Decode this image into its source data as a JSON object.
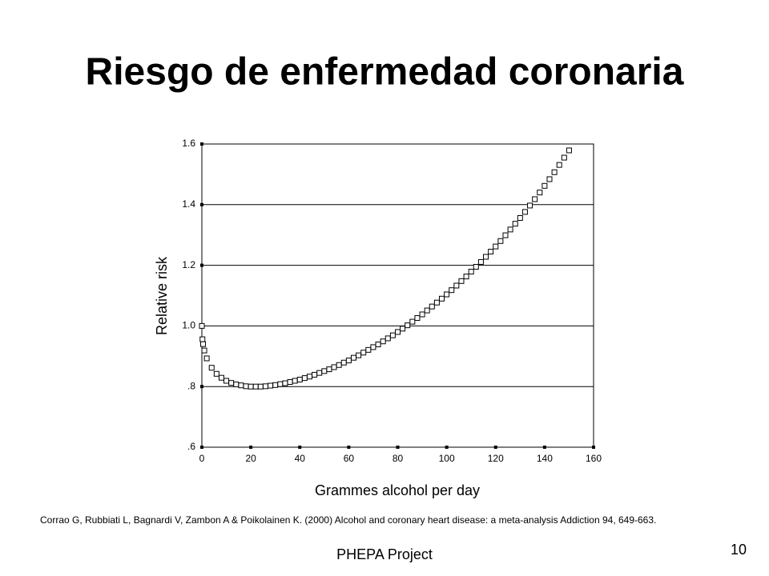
{
  "title": "Riesgo de enfermedad coronaria",
  "chart_data": {
    "type": "scatter",
    "x_label": "Grammes alcohol per day",
    "y_label": "Relative risk",
    "color": "#000000",
    "grid": true,
    "xlim": [
      0,
      160
    ],
    "ylim": [
      0.6,
      1.6
    ],
    "xticks": [
      0,
      20,
      40,
      60,
      80,
      100,
      120,
      140,
      160
    ],
    "yticks": [
      {
        "value": 0.6,
        "label": ".6"
      },
      {
        "value": 0.8,
        "label": ".8"
      },
      {
        "value": 1.0,
        "label": "1.0"
      },
      1.2,
      1.4,
      1.6
    ],
    "x": [
      0,
      0.25,
      0.5,
      1,
      2,
      4,
      6,
      8,
      10,
      12,
      14,
      16,
      18,
      20,
      22,
      24,
      26,
      28,
      30,
      32,
      34,
      36,
      38,
      40,
      42,
      44,
      46,
      48,
      50,
      52,
      54,
      56,
      58,
      60,
      62,
      64,
      66,
      68,
      70,
      72,
      74,
      76,
      78,
      80,
      82,
      84,
      86,
      88,
      90,
      92,
      94,
      96,
      98,
      100,
      102,
      104,
      106,
      108,
      110,
      112,
      114,
      116,
      118,
      120,
      122,
      124,
      126,
      128,
      130,
      132,
      134,
      136,
      138,
      140,
      142,
      144,
      146,
      148,
      150
    ],
    "values": [
      1.0,
      0.956,
      0.94,
      0.919,
      0.893,
      0.862,
      0.842,
      0.829,
      0.819,
      0.812,
      0.807,
      0.804,
      0.801,
      0.8,
      0.8,
      0.8,
      0.801,
      0.803,
      0.805,
      0.808,
      0.811,
      0.815,
      0.819,
      0.823,
      0.828,
      0.833,
      0.839,
      0.845,
      0.851,
      0.857,
      0.864,
      0.871,
      0.879,
      0.886,
      0.895,
      0.903,
      0.912,
      0.921,
      0.93,
      0.939,
      0.949,
      0.959,
      0.969,
      0.98,
      0.991,
      1.002,
      1.014,
      1.026,
      1.038,
      1.051,
      1.064,
      1.077,
      1.09,
      1.104,
      1.118,
      1.133,
      1.148,
      1.163,
      1.179,
      1.195,
      1.211,
      1.228,
      1.245,
      1.262,
      1.28,
      1.299,
      1.318,
      1.337,
      1.356,
      1.376,
      1.397,
      1.418,
      1.44,
      1.462,
      1.484,
      1.507,
      1.531,
      1.555,
      1.579
    ]
  },
  "citation": "Corrao G, Rubbiati L, Bagnardi V, Zambon A & Poikolainen K. (2000) Alcohol and coronary heart disease: a meta-analysis Addiction 94, 649-663.",
  "footer": "PHEPA Project",
  "page_number": "10"
}
